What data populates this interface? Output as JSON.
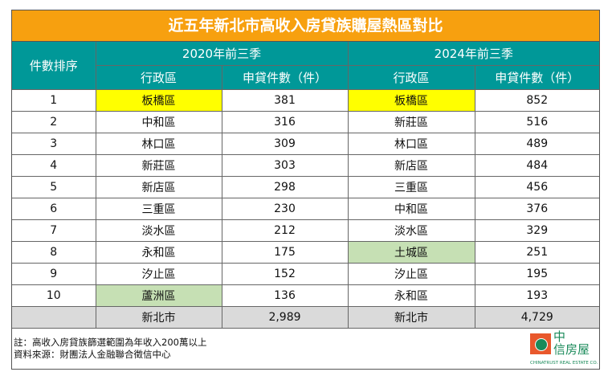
{
  "title": "近五年新北市高收入房貸族購屋熱區對比",
  "header": {
    "rank": "件數排序",
    "period_a": "2020年前三季",
    "period_b": "2024年前三季",
    "district": "行政區",
    "count": "申貸件數（件）"
  },
  "rows": [
    {
      "rank": "1",
      "a_district": "板橋區",
      "a_count": "381",
      "b_district": "板橋區",
      "b_count": "852",
      "a_hl": "yel",
      "b_hl": "yel"
    },
    {
      "rank": "2",
      "a_district": "中和區",
      "a_count": "316",
      "b_district": "新莊區",
      "b_count": "516",
      "a_hl": "",
      "b_hl": ""
    },
    {
      "rank": "3",
      "a_district": "林口區",
      "a_count": "309",
      "b_district": "林口區",
      "b_count": "489",
      "a_hl": "",
      "b_hl": ""
    },
    {
      "rank": "4",
      "a_district": "新莊區",
      "a_count": "303",
      "b_district": "新店區",
      "b_count": "484",
      "a_hl": "",
      "b_hl": ""
    },
    {
      "rank": "5",
      "a_district": "新店區",
      "a_count": "298",
      "b_district": "三重區",
      "b_count": "456",
      "a_hl": "",
      "b_hl": ""
    },
    {
      "rank": "6",
      "a_district": "三重區",
      "a_count": "230",
      "b_district": "中和區",
      "b_count": "376",
      "a_hl": "",
      "b_hl": ""
    },
    {
      "rank": "7",
      "a_district": "淡水區",
      "a_count": "212",
      "b_district": "淡水區",
      "b_count": "329",
      "a_hl": "",
      "b_hl": ""
    },
    {
      "rank": "8",
      "a_district": "永和區",
      "a_count": "175",
      "b_district": "土城區",
      "b_count": "251",
      "a_hl": "",
      "b_hl": "grn"
    },
    {
      "rank": "9",
      "a_district": "汐止區",
      "a_count": "152",
      "b_district": "汐止區",
      "b_count": "195",
      "a_hl": "",
      "b_hl": ""
    },
    {
      "rank": "10",
      "a_district": "蘆洲區",
      "a_count": "136",
      "b_district": "永和區",
      "b_count": "193",
      "a_hl": "grn",
      "b_hl": ""
    }
  ],
  "total": {
    "a_district": "新北市",
    "a_count": "2,989",
    "b_district": "新北市",
    "b_count": "4,729"
  },
  "notes": [
    "註：高收入房貸族篩選範圍為年收入200萬以上",
    "資料來源：財團法人金融聯合徵信中心"
  ],
  "logo": {
    "zh1": "中",
    "zh2": "信房屋",
    "en": "CHINATRUST REAL ESTATE CO."
  },
  "colors": {
    "title_bg": "#F7A00F",
    "header_bg": "#009898",
    "highlight_yellow": "#FFFF00",
    "highlight_green": "#C6E0B4",
    "total_bg": "#DADADA"
  }
}
